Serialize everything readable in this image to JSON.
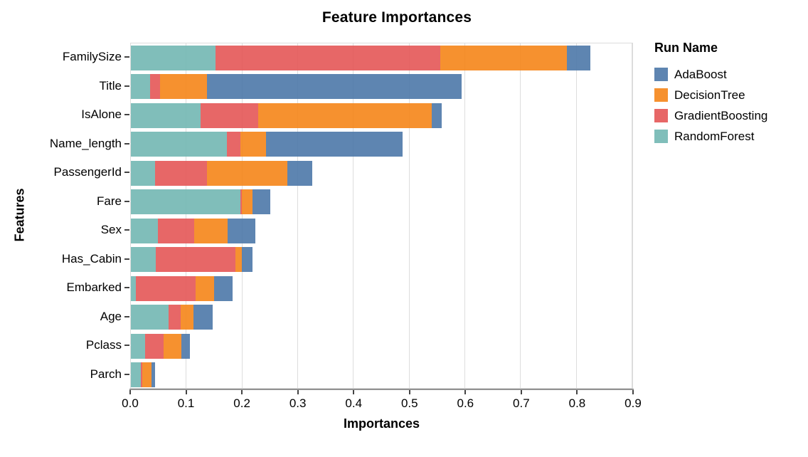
{
  "title": "Feature Importances",
  "x_axis": {
    "label": "Importances",
    "ticks": [
      "0.0",
      "0.1",
      "0.2",
      "0.3",
      "0.4",
      "0.5",
      "0.6",
      "0.7",
      "0.8",
      "0.9"
    ]
  },
  "y_axis": {
    "label": "Features"
  },
  "legend": {
    "title": "Run Name",
    "entries": [
      {
        "label": "AdaBoost",
        "color": "#4c78a8"
      },
      {
        "label": "DecisionTree",
        "color": "#f58518"
      },
      {
        "label": "GradientBoosting",
        "color": "#e45756"
      },
      {
        "label": "RandomForest",
        "color": "#72b7b2"
      }
    ]
  },
  "colors": {
    "grid": "#dddddd",
    "axis_line": "#929292",
    "tick": "#444444"
  },
  "chart_data": {
    "type": "bar",
    "orientation": "horizontal",
    "stacked": true,
    "title": "Feature Importances",
    "xlabel": "Importances",
    "ylabel": "Features",
    "xlim": [
      0,
      0.9
    ],
    "grid": true,
    "legend_position": "right",
    "categories": [
      "FamilySize",
      "Title",
      "IsAlone",
      "Name_length",
      "PassengerId",
      "Fare",
      "Sex",
      "Has_Cabin",
      "Embarked",
      "Age",
      "Pclass",
      "Parch"
    ],
    "series": [
      {
        "name": "RandomForest",
        "color": "#72b7b2",
        "values": [
          0.152,
          0.034,
          0.125,
          0.172,
          0.044,
          0.197,
          0.049,
          0.045,
          0.009,
          0.068,
          0.025,
          0.018
        ]
      },
      {
        "name": "GradientBoosting",
        "color": "#e45756",
        "values": [
          0.403,
          0.018,
          0.103,
          0.025,
          0.093,
          0.002,
          0.065,
          0.143,
          0.107,
          0.022,
          0.034,
          0.003
        ]
      },
      {
        "name": "DecisionTree",
        "color": "#f58518",
        "values": [
          0.228,
          0.084,
          0.312,
          0.045,
          0.144,
          0.019,
          0.06,
          0.011,
          0.034,
          0.022,
          0.032,
          0.016
        ]
      },
      {
        "name": "AdaBoost",
        "color": "#4c78a8",
        "values": [
          0.042,
          0.458,
          0.018,
          0.246,
          0.045,
          0.032,
          0.049,
          0.019,
          0.033,
          0.035,
          0.015,
          0.007
        ]
      }
    ]
  }
}
